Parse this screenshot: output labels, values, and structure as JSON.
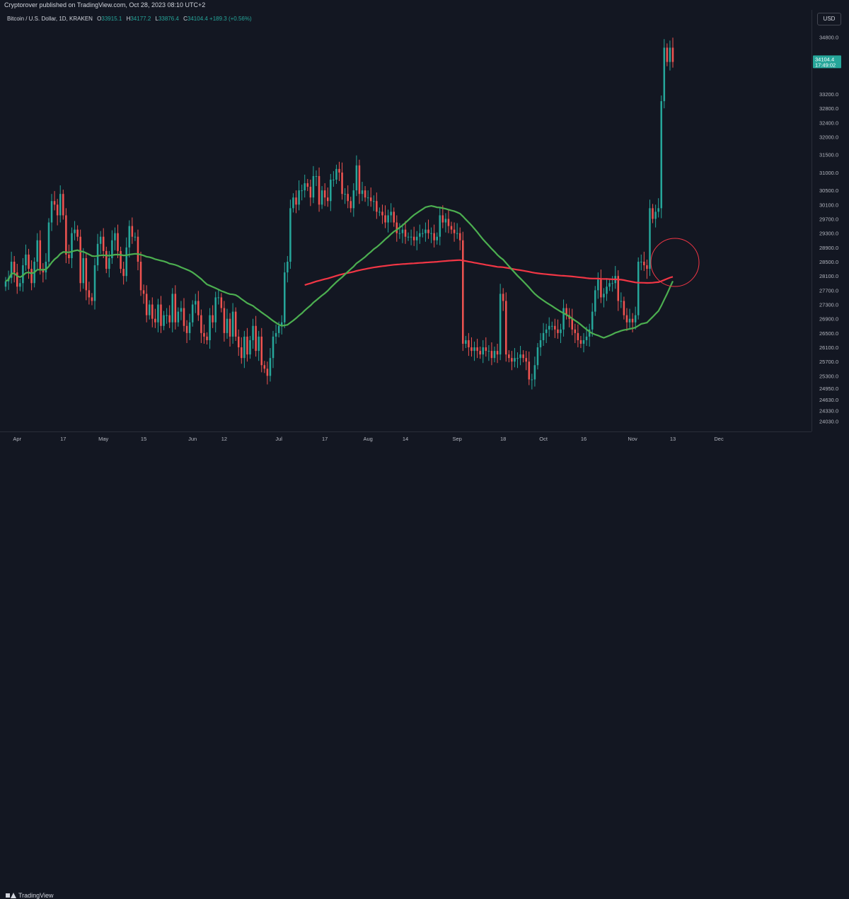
{
  "header": {
    "published": "Cryptorover published on TradingView.com, Oct 28, 2023 08:10 UTC+2"
  },
  "legend": {
    "symbol": "Bitcoin / U.S. Dollar, 1D, KRAKEN",
    "open_label": "O",
    "open": "33915.1",
    "high_label": "H",
    "high": "34177.2",
    "low_label": "L",
    "low": "33876.4",
    "close_label": "C",
    "close": "34104.4",
    "change": "+189.3 (+0.56%)"
  },
  "currency": "USD",
  "current_price": {
    "value": "34104.4",
    "countdown": "17:49:02",
    "color": "#26a69a"
  },
  "footer": {
    "brand": "TradingView"
  },
  "chart_data": {
    "type": "candlestick",
    "y_ticks": [
      "34800.0",
      "33200.0",
      "32800.0",
      "32400.0",
      "32000.0",
      "31500.0",
      "31000.0",
      "30500.0",
      "30100.0",
      "29700.0",
      "29300.0",
      "28900.0",
      "28500.0",
      "28100.0",
      "27700.0",
      "27300.0",
      "26900.0",
      "26500.0",
      "26100.0",
      "25700.0",
      "25300.0",
      "24950.0",
      "24630.0",
      "24330.0",
      "24030.0"
    ],
    "x_ticks": [
      "Apr",
      "17",
      "May",
      "15",
      "Jun",
      "12",
      "Jul",
      "17",
      "Aug",
      "14",
      "Sep",
      "18",
      "Oct",
      "16",
      "Nov",
      "13",
      "Dec"
    ],
    "ylim": [
      23900,
      35400
    ],
    "colors": {
      "up": "#26a69a",
      "down": "#ef5350",
      "ma_fast": "#4caf50",
      "ma_slow": "#f23645",
      "marker": "#f23645"
    },
    "closes": [
      27950,
      28050,
      28500,
      28200,
      27800,
      27900,
      28400,
      28700,
      28300,
      27900,
      28500,
      29100,
      28300,
      28200,
      28500,
      29600,
      30200,
      30100,
      29800,
      30400,
      29800,
      28700,
      28600,
      29300,
      29400,
      29200,
      27900,
      28600,
      27700,
      27500,
      27400,
      28400,
      29000,
      29200,
      28800,
      28300,
      28600,
      29100,
      29300,
      28800,
      28300,
      28100,
      28900,
      29500,
      29200,
      29200,
      28500,
      27700,
      27600,
      27000,
      27300,
      26900,
      26800,
      27300,
      26700,
      27000,
      27000,
      26800,
      27600,
      26800,
      27100,
      27200,
      26700,
      26500,
      26800,
      27300,
      27400,
      27000,
      26500,
      26400,
      26300,
      27000,
      26800,
      27500,
      27500,
      27200,
      26500,
      26900,
      26400,
      27100,
      26400,
      26100,
      25800,
      26400,
      25900,
      26300,
      26700,
      26000,
      26400,
      25600,
      25500,
      25300,
      25800,
      26400,
      26500,
      26700,
      26800,
      28200,
      28500,
      30000,
      30300,
      30100,
      30500,
      30500,
      30700,
      30600,
      30300,
      30900,
      30900,
      30100,
      30500,
      30300,
      30200,
      30800,
      30800,
      31100,
      31000,
      30400,
      30400,
      30200,
      30000,
      30500,
      31200,
      30400,
      30500,
      30300,
      30300,
      30200,
      30200,
      29900,
      29900,
      29800,
      29600,
      29800,
      29900,
      29600,
      29300,
      29300,
      29400,
      29200,
      29200,
      29200,
      29100,
      29200,
      29300,
      29300,
      29400,
      29300,
      29300,
      29100,
      29200,
      29800,
      29600,
      29700,
      29500,
      29400,
      29300,
      29300,
      29100,
      26200,
      26300,
      26100,
      26000,
      26100,
      26000,
      25900,
      26100,
      26000,
      26000,
      25800,
      26000,
      25900,
      27600,
      27400,
      25900,
      25800,
      25700,
      25800,
      25800,
      25900,
      25800,
      25700,
      25200,
      25200,
      25600,
      26100,
      26300,
      26500,
      26600,
      26700,
      26700,
      26600,
      26500,
      26600,
      27200,
      27000,
      26900,
      26600,
      26500,
      26300,
      26200,
      26300,
      26400,
      26600,
      27100,
      27700,
      28000,
      27500,
      27600,
      27800,
      27900,
      27900,
      28100,
      27400,
      27400,
      27000,
      26800,
      26900,
      26800,
      27000,
      28500,
      28500,
      28400,
      28300,
      30000,
      29700,
      29900,
      30000,
      33000,
      34500,
      34100,
      34500,
      34100
    ]
  }
}
